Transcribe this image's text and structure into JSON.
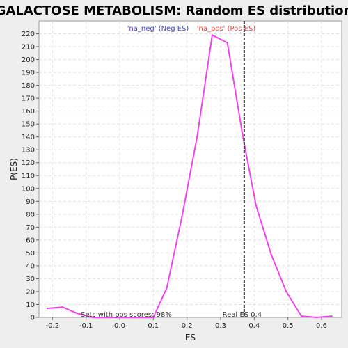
{
  "chart_data": {
    "type": "line",
    "title": "GALACTOSE METABOLISM: Random ES distribution",
    "xlabel": "ES",
    "ylabel": "P(ES)",
    "xlim": [
      -0.24,
      0.66
    ],
    "ylim": [
      0,
      230
    ],
    "x_ticks": [
      -0.2,
      -0.1,
      0.0,
      0.1,
      0.2,
      0.3,
      0.4,
      0.5,
      0.6
    ],
    "x_tick_labels": [
      "-0.2",
      "-0.1",
      "0.0",
      "0.1",
      "0.2",
      "0.3",
      "0.4",
      "0.5",
      "0.6"
    ],
    "y_ticks": [
      0,
      10,
      20,
      30,
      40,
      50,
      60,
      70,
      80,
      90,
      100,
      110,
      120,
      130,
      140,
      150,
      160,
      170,
      180,
      190,
      200,
      210,
      220
    ],
    "grid": true,
    "series": [
      {
        "color": "#ee44ee",
        "x": [
          -0.215,
          -0.17,
          -0.125,
          -0.08,
          -0.035,
          0.01,
          0.055,
          0.1,
          0.14,
          0.185,
          0.23,
          0.275,
          0.32,
          0.365,
          0.405,
          0.45,
          0.495,
          0.54,
          0.585,
          0.63
        ],
        "y": [
          7,
          8,
          3,
          0,
          0,
          0,
          0,
          0,
          23,
          78,
          140,
          219,
          213,
          142,
          87,
          49,
          20,
          1,
          0,
          1
        ]
      }
    ],
    "real_es": 0.37,
    "annotations": {
      "neg_label": "'na_neg' (Neg ES)",
      "pos_label": "'na_pos' (Pos ES)",
      "pos_scores": "Sets with pos scores: 98%",
      "real_es_label": "Real ES 0.4"
    },
    "colors": {
      "line": "#ee44ee",
      "neg": "#4444cc",
      "pos": "#ee4444",
      "real_es": "#333333"
    }
  }
}
